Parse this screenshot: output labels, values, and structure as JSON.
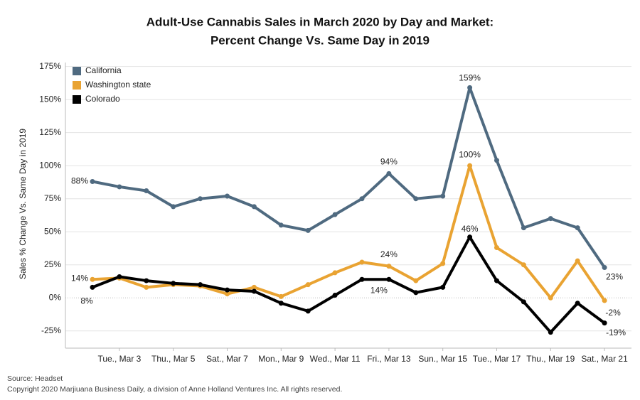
{
  "chart_data": {
    "type": "line",
    "title": [
      "Adult-Use Cannabis Sales in March 2020 by Day and Market:",
      "Percent Change Vs. Same Day in 2019"
    ],
    "y_label": "Sales % Change Vs. Same Day in 2019",
    "source": "Source: Headset",
    "copyright": "Copyright 2020 Marjiuana Business Daily, a division of Anne Holland Ventures Inc. All rights reserved.",
    "categories": [
      null,
      "Tue., Mar 3",
      null,
      "Thu., Mar 5",
      null,
      "Sat., Mar 7",
      null,
      "Mon., Mar 9",
      null,
      "Wed., Mar 11",
      null,
      "Fri., Mar 13",
      null,
      "Sun., Mar 15",
      null,
      "Tue., Mar 17",
      null,
      "Thu., Mar 19",
      null,
      "Sat., Mar 21"
    ],
    "series": [
      {
        "name": "California",
        "color": "#4f6a80",
        "values": [
          88,
          84,
          81,
          69,
          75,
          77,
          69,
          55,
          51,
          63,
          75,
          94,
          75,
          77,
          159,
          104,
          53,
          60,
          53,
          23
        ],
        "value_labels": [
          "88%",
          null,
          null,
          null,
          null,
          null,
          null,
          null,
          null,
          null,
          null,
          "94%",
          null,
          null,
          "159%",
          null,
          null,
          null,
          null,
          "23%"
        ]
      },
      {
        "name": "Washington state",
        "color": "#e9a332",
        "values": [
          14,
          15,
          8,
          10,
          9,
          3,
          8,
          1,
          10,
          19,
          27,
          24,
          13,
          26,
          100,
          38,
          25,
          0,
          28,
          -2
        ],
        "value_labels": [
          "14%",
          null,
          null,
          null,
          null,
          null,
          null,
          null,
          null,
          null,
          null,
          "24%",
          null,
          null,
          "100%",
          null,
          null,
          null,
          null,
          "-2%"
        ]
      },
      {
        "name": "Colorado",
        "color": "#000000",
        "values": [
          8,
          16,
          13,
          11,
          10,
          6,
          5,
          -4,
          -10,
          2,
          14,
          14,
          4,
          8,
          46,
          13,
          -3,
          -26,
          -4,
          -19
        ],
        "value_labels": [
          "8%",
          null,
          null,
          null,
          null,
          null,
          null,
          null,
          null,
          null,
          null,
          "14%",
          null,
          null,
          "46%",
          null,
          null,
          null,
          null,
          "-19%"
        ]
      }
    ],
    "ylim": [
      -38,
      178
    ],
    "yticks": [
      {
        "value": -25,
        "label": "-25%"
      },
      {
        "value": 0,
        "label": "0%"
      },
      {
        "value": 25,
        "label": "25%"
      },
      {
        "value": 50,
        "label": "50%"
      },
      {
        "value": 75,
        "label": "75%"
      },
      {
        "value": 100,
        "label": "100%"
      },
      {
        "value": 125,
        "label": "125%"
      },
      {
        "value": 150,
        "label": "150%"
      },
      {
        "value": 175,
        "label": "175%"
      }
    ],
    "grid": true,
    "legend": "upper left"
  }
}
